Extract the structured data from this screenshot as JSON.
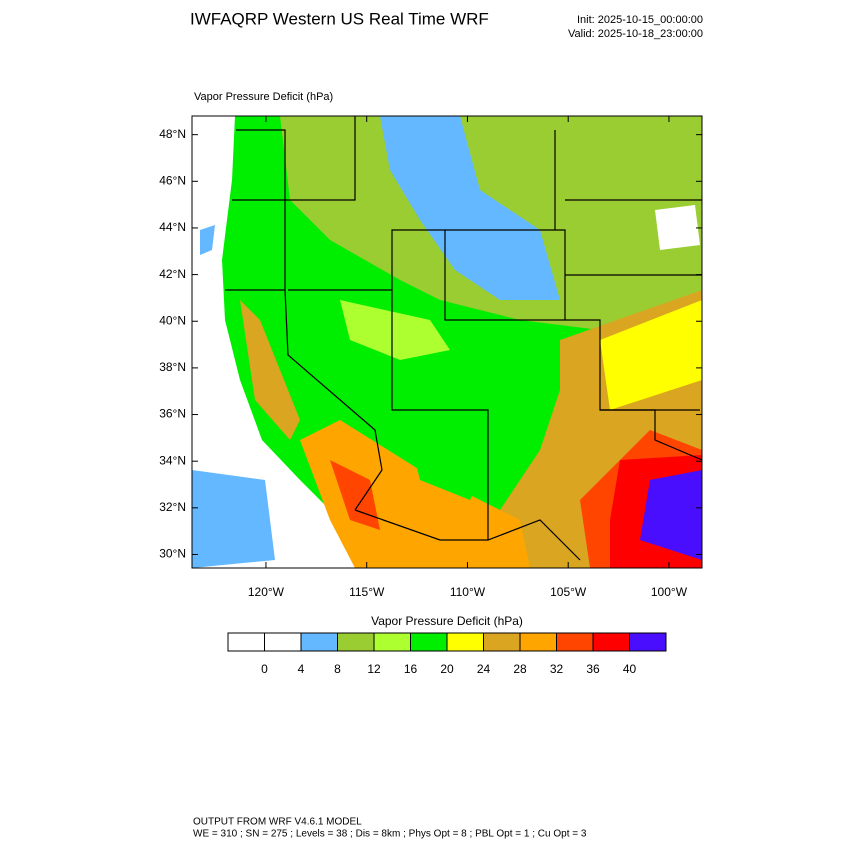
{
  "header": {
    "title": "IWFAQRP Western US Real Time WRF",
    "init": "Init: 2025-10-15_00:00:00",
    "valid": "Valid: 2025-10-18_23:00:00"
  },
  "map": {
    "field_label": "Vapor Pressure Deficit   (hPa)",
    "lonlim": [
      -123.67,
      -98.36
    ],
    "latlim": [
      29.42,
      48.8
    ],
    "lat_ticks": [
      {
        "value": 48,
        "label": "48°N"
      },
      {
        "value": 46,
        "label": "46°N"
      },
      {
        "value": 44,
        "label": "44°N"
      },
      {
        "value": 42,
        "label": "42°N"
      },
      {
        "value": 40,
        "label": "40°N"
      },
      {
        "value": 38,
        "label": "38°N"
      },
      {
        "value": 36,
        "label": "36°N"
      },
      {
        "value": 34,
        "label": "34°N"
      },
      {
        "value": 32,
        "label": "32°N"
      },
      {
        "value": 30,
        "label": "30°N"
      }
    ],
    "lon_ticks": [
      {
        "value": -120,
        "label": "120°W"
      },
      {
        "value": -115,
        "label": "115°W"
      },
      {
        "value": -110,
        "label": "110°W"
      },
      {
        "value": -105,
        "label": "105°W"
      },
      {
        "value": -100,
        "label": "100°W"
      }
    ]
  },
  "colorbar": {
    "title": "Vapor Pressure Deficit  (hPa)",
    "levels": [
      0,
      4,
      8,
      12,
      16,
      20,
      24,
      28,
      32,
      36,
      40
    ],
    "colors": [
      "#ffffff",
      "#ffffff",
      "#63b8ff",
      "#9acd32",
      "#adff2f",
      "#00ee00",
      "#ffff00",
      "#daa520",
      "#ffa500",
      "#ff4500",
      "#ff0000",
      "#4a0eff"
    ]
  },
  "footer": {
    "line1": "OUTPUT FROM WRF V4.6.1 MODEL",
    "line2": "WE = 310 ; SN = 275 ; Levels = 38 ; Dis = 8km ; Phys Opt = 8 ; PBL Opt = 1 ; Cu Opt = 3"
  }
}
